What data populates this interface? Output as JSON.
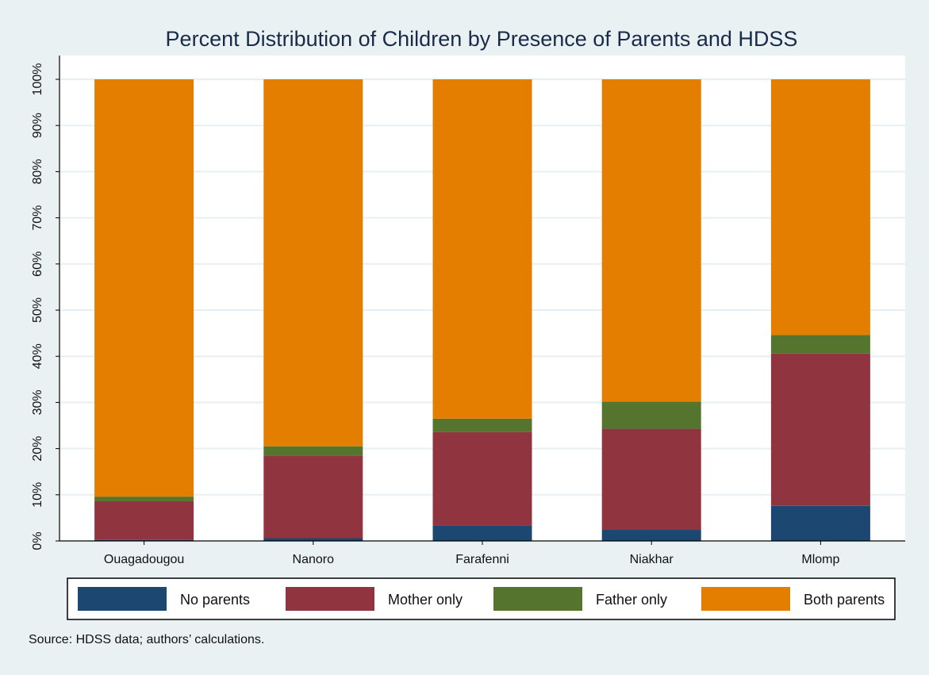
{
  "chart_data": {
    "type": "bar",
    "stacked": true,
    "title": "Percent Distribution of Children by Presence of Parents and HDSS",
    "xlabel": "",
    "ylabel": "",
    "categories": [
      "Ouagadougou",
      "Nanoro",
      "Farafenni",
      "Niakhar",
      "Mlomp"
    ],
    "series": [
      {
        "name": "No parents",
        "color": "#1b4770",
        "values": [
          0.2,
          0.6,
          3.4,
          2.4,
          7.6
        ]
      },
      {
        "name": "Mother only",
        "color": "#90353f",
        "values": [
          8.4,
          17.9,
          20.2,
          21.9,
          33.0
        ]
      },
      {
        "name": "Father only",
        "color": "#55752f",
        "values": [
          1.0,
          2.0,
          2.9,
          5.9,
          4.0
        ]
      },
      {
        "name": "Both parents",
        "color": "#e37e00",
        "values": [
          90.4,
          79.5,
          73.5,
          69.8,
          55.4
        ]
      }
    ],
    "ylim": [
      0,
      100
    ],
    "yticks": [
      "0%",
      "10%",
      "20%",
      "30%",
      "40%",
      "50%",
      "60%",
      "70%",
      "80%",
      "90%",
      "100%"
    ],
    "grid": true,
    "legend_position": "bottom",
    "source_note": "Source: HDSS data; authors’ calculations."
  }
}
